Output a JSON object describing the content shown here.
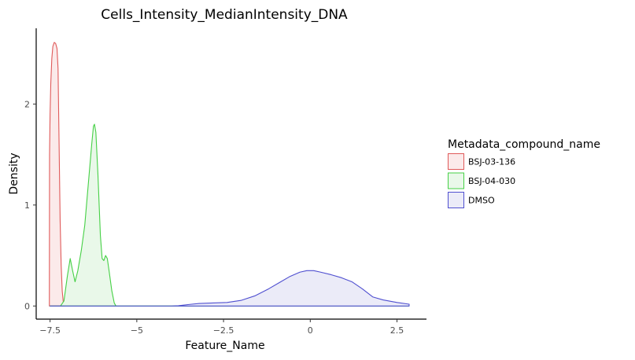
{
  "chart_data": {
    "type": "area",
    "title": "Cells_Intensity_MedianIntensity_DNA",
    "xlabel": "Feature_Name",
    "ylabel": "Density",
    "xlim": [
      -7.9,
      3.35
    ],
    "ylim": [
      -0.13,
      2.75
    ],
    "x_ticks": [
      -7.5,
      -5,
      -2.5,
      0,
      2.5
    ],
    "x_tick_labels": [
      "−7.5",
      "−5",
      "−2.5",
      "0",
      "2.5"
    ],
    "y_ticks": [
      0,
      1,
      2
    ],
    "y_tick_labels": [
      "0",
      "1",
      "2"
    ],
    "grid": false,
    "legend": {
      "title": "Metadata_compound_name",
      "position": "right"
    },
    "series": [
      {
        "name": "BSJ-03-136",
        "line_color": "#e05a5a",
        "fill_color": "#fbeaea",
        "points": [
          [
            -7.52,
            0.0
          ],
          [
            -7.515,
            1.5
          ],
          [
            -7.5,
            1.9
          ],
          [
            -7.48,
            2.2
          ],
          [
            -7.45,
            2.45
          ],
          [
            -7.42,
            2.57
          ],
          [
            -7.38,
            2.61
          ],
          [
            -7.34,
            2.6
          ],
          [
            -7.3,
            2.55
          ],
          [
            -7.27,
            2.35
          ],
          [
            -7.24,
            1.6
          ],
          [
            -7.21,
            0.85
          ],
          [
            -7.18,
            0.4
          ],
          [
            -7.15,
            0.15
          ],
          [
            -7.12,
            0.04
          ],
          [
            -7.09,
            0.0
          ]
        ]
      },
      {
        "name": "BSJ-04-030",
        "line_color": "#45d045",
        "fill_color": "#e9f8e9",
        "points": [
          [
            -7.5,
            0.0
          ],
          [
            -7.2,
            0.0
          ],
          [
            -7.1,
            0.05
          ],
          [
            -7.0,
            0.3
          ],
          [
            -6.92,
            0.47
          ],
          [
            -6.85,
            0.35
          ],
          [
            -6.78,
            0.24
          ],
          [
            -6.7,
            0.35
          ],
          [
            -6.6,
            0.55
          ],
          [
            -6.5,
            0.8
          ],
          [
            -6.4,
            1.2
          ],
          [
            -6.3,
            1.6
          ],
          [
            -6.25,
            1.78
          ],
          [
            -6.22,
            1.8
          ],
          [
            -6.18,
            1.72
          ],
          [
            -6.12,
            1.3
          ],
          [
            -6.05,
            0.7
          ],
          [
            -6.0,
            0.47
          ],
          [
            -5.95,
            0.45
          ],
          [
            -5.9,
            0.5
          ],
          [
            -5.85,
            0.47
          ],
          [
            -5.8,
            0.35
          ],
          [
            -5.72,
            0.15
          ],
          [
            -5.65,
            0.03
          ],
          [
            -5.6,
            0.0
          ],
          [
            2.85,
            0.0
          ]
        ]
      },
      {
        "name": "DMSO",
        "line_color": "#4f4fd0",
        "fill_color": "#ebebf8",
        "points": [
          [
            -7.5,
            0.0
          ],
          [
            -4.0,
            0.0
          ],
          [
            -3.8,
            0.003
          ],
          [
            -3.5,
            0.015
          ],
          [
            -3.2,
            0.025
          ],
          [
            -2.8,
            0.03
          ],
          [
            -2.4,
            0.035
          ],
          [
            -2.0,
            0.055
          ],
          [
            -1.6,
            0.1
          ],
          [
            -1.2,
            0.17
          ],
          [
            -0.9,
            0.23
          ],
          [
            -0.6,
            0.29
          ],
          [
            -0.3,
            0.335
          ],
          [
            -0.1,
            0.35
          ],
          [
            0.1,
            0.35
          ],
          [
            0.3,
            0.335
          ],
          [
            0.6,
            0.31
          ],
          [
            0.9,
            0.28
          ],
          [
            1.2,
            0.24
          ],
          [
            1.5,
            0.17
          ],
          [
            1.8,
            0.09
          ],
          [
            2.1,
            0.06
          ],
          [
            2.5,
            0.035
          ],
          [
            2.85,
            0.018
          ],
          [
            2.85,
            0.0
          ]
        ]
      }
    ]
  }
}
